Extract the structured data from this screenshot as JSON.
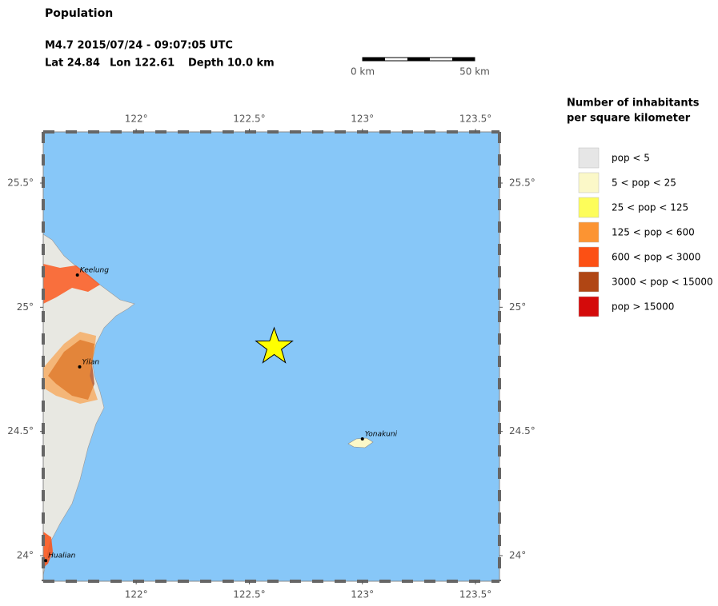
{
  "header": {
    "title": "Population",
    "event": "M4.7  2015/07/24 - 09:07:05 UTC",
    "lat": "Lat 24.84",
    "lon": "Lon 122.61",
    "depth": "Depth  10.0 km"
  },
  "scale_bar": {
    "start_label": "0 km",
    "end_label": "50 km"
  },
  "map": {
    "xlim": [
      121.589,
      123.606
    ],
    "ylim": [
      23.897,
      25.706
    ],
    "xticks": [
      {
        "value": 122,
        "label": "122°"
      },
      {
        "value": 122.5,
        "label": "122.5°"
      },
      {
        "value": 123,
        "label": "123°"
      },
      {
        "value": 123.5,
        "label": "123.5°"
      }
    ],
    "yticks": [
      {
        "value": 24,
        "label": "24°"
      },
      {
        "value": 24.5,
        "label": "24.5°"
      },
      {
        "value": 25,
        "label": "25°"
      },
      {
        "value": 25.5,
        "label": "25.5°"
      }
    ],
    "epicenter": {
      "lon": 122.61,
      "lat": 24.84,
      "color": "#ffff00"
    },
    "cities": [
      {
        "name": "Keelung",
        "lon": 121.74,
        "lat": 25.13
      },
      {
        "name": "Yilan",
        "lon": 121.75,
        "lat": 24.76
      },
      {
        "name": "Hualian",
        "lon": 121.6,
        "lat": 23.98
      },
      {
        "name": "Yonakuni",
        "lon": 123.0,
        "lat": 24.47
      }
    ]
  },
  "legend": {
    "title": [
      "Number of inhabitants",
      "per square kilometer"
    ],
    "items": [
      {
        "label": "pop < 5",
        "color": "#e6e6e6"
      },
      {
        "label": "5 < pop < 25",
        "color": "#fbf8c8"
      },
      {
        "label": "25 < pop < 125",
        "color": "#fdfd5a"
      },
      {
        "label": "125 < pop < 600",
        "color": "#fc9432"
      },
      {
        "label": "600 < pop < 3000",
        "color": "#fc5014"
      },
      {
        "label": "3000 < pop < 15000",
        "color": "#b04614"
      },
      {
        "label": "pop > 15000",
        "color": "#d40a0a"
      }
    ]
  }
}
